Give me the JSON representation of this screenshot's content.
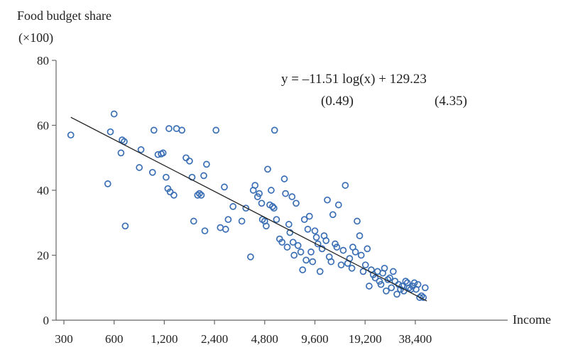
{
  "chart_data": {
    "type": "scatter",
    "title": "",
    "ylabel_line1": "Food budget share",
    "ylabel_line2": "(×100)",
    "xlabel": "Income",
    "x_scale": "log2",
    "xlim": [
      300,
      50000
    ],
    "ylim": [
      0,
      80
    ],
    "y_ticks": [
      "0",
      "20",
      "40",
      "60",
      "80"
    ],
    "x_ticks": [
      "300",
      "600",
      "1,200",
      "2,400",
      "4,800",
      "9,600",
      "19,200",
      "38,400"
    ],
    "grid": false,
    "legend": "none",
    "annotation": {
      "equation": "y = –11.51 log(x)  +  129.23",
      "se_slope": "(0.49)",
      "se_intercept": "(4.35)"
    },
    "fit_line": {
      "slope": -11.51,
      "intercept": 129.23,
      "x_from": 330,
      "x_to": 45000
    },
    "point_color": "#3a6fb5",
    "line_color": "#222222",
    "points": [
      [
        330,
        57
      ],
      [
        550,
        42
      ],
      [
        570,
        58
      ],
      [
        600,
        63.5
      ],
      [
        660,
        51.5
      ],
      [
        670,
        55.5
      ],
      [
        690,
        55
      ],
      [
        700,
        29
      ],
      [
        850,
        47
      ],
      [
        870,
        52.5
      ],
      [
        1020,
        45.5
      ],
      [
        1040,
        58.5
      ],
      [
        1100,
        51
      ],
      [
        1150,
        51.2
      ],
      [
        1180,
        51.5
      ],
      [
        1230,
        44
      ],
      [
        1260,
        40.5
      ],
      [
        1280,
        59
      ],
      [
        1300,
        39.5
      ],
      [
        1370,
        38.5
      ],
      [
        1420,
        59
      ],
      [
        1530,
        58.5
      ],
      [
        1620,
        50
      ],
      [
        1700,
        49
      ],
      [
        1760,
        44
      ],
      [
        1800,
        30.5
      ],
      [
        1900,
        38.5
      ],
      [
        1950,
        39
      ],
      [
        2000,
        38.5
      ],
      [
        2070,
        44.5
      ],
      [
        2100,
        27.5
      ],
      [
        2150,
        48
      ],
      [
        2450,
        58.5
      ],
      [
        2600,
        28.5
      ],
      [
        2750,
        41
      ],
      [
        2800,
        28
      ],
      [
        2900,
        31
      ],
      [
        3100,
        35
      ],
      [
        3500,
        30.5
      ],
      [
        3700,
        34.5
      ],
      [
        3950,
        19.5
      ],
      [
        4100,
        40
      ],
      [
        4200,
        41.5
      ],
      [
        4350,
        38
      ],
      [
        4450,
        39
      ],
      [
        4600,
        36
      ],
      [
        4650,
        31
      ],
      [
        4800,
        30.5
      ],
      [
        4900,
        29
      ],
      [
        5000,
        46.5
      ],
      [
        5150,
        35.5
      ],
      [
        5250,
        40
      ],
      [
        5350,
        35
      ],
      [
        5450,
        34.5
      ],
      [
        5500,
        58.5
      ],
      [
        5650,
        31
      ],
      [
        5900,
        25
      ],
      [
        6100,
        24
      ],
      [
        6300,
        43.5
      ],
      [
        6400,
        39
      ],
      [
        6550,
        22.5
      ],
      [
        6700,
        29.5
      ],
      [
        6800,
        27
      ],
      [
        7000,
        38
      ],
      [
        7100,
        24
      ],
      [
        7200,
        20
      ],
      [
        7400,
        36
      ],
      [
        7600,
        23
      ],
      [
        7900,
        21
      ],
      [
        8100,
        15.5
      ],
      [
        8300,
        31
      ],
      [
        8500,
        18.5
      ],
      [
        8700,
        28
      ],
      [
        8900,
        32
      ],
      [
        9100,
        21
      ],
      [
        9300,
        18
      ],
      [
        9600,
        27.5
      ],
      [
        9800,
        25.5
      ],
      [
        10000,
        23.5
      ],
      [
        10300,
        15
      ],
      [
        10600,
        22
      ],
      [
        10900,
        26
      ],
      [
        11200,
        24.5
      ],
      [
        11400,
        37
      ],
      [
        11700,
        19.5
      ],
      [
        12000,
        18
      ],
      [
        12300,
        32.5
      ],
      [
        12700,
        23.5
      ],
      [
        13000,
        22.5
      ],
      [
        13300,
        35.5
      ],
      [
        13800,
        17
      ],
      [
        14200,
        21.5
      ],
      [
        14600,
        41.5
      ],
      [
        15100,
        17.5
      ],
      [
        15500,
        19
      ],
      [
        16000,
        16
      ],
      [
        16200,
        22.5
      ],
      [
        16800,
        21
      ],
      [
        17200,
        30.5
      ],
      [
        17800,
        26
      ],
      [
        18200,
        20
      ],
      [
        18700,
        15
      ],
      [
        19300,
        17
      ],
      [
        19800,
        22
      ],
      [
        20300,
        10.5
      ],
      [
        20900,
        15.5
      ],
      [
        21500,
        14
      ],
      [
        22100,
        13
      ],
      [
        22800,
        15
      ],
      [
        23400,
        12
      ],
      [
        23900,
        11
      ],
      [
        24500,
        14.5
      ],
      [
        25100,
        16
      ],
      [
        25700,
        9
      ],
      [
        26300,
        12.5
      ],
      [
        27000,
        13
      ],
      [
        27600,
        10
      ],
      [
        28300,
        15
      ],
      [
        29000,
        12
      ],
      [
        29800,
        8
      ],
      [
        30500,
        11
      ],
      [
        31300,
        9.5
      ],
      [
        32000,
        10.5
      ],
      [
        32800,
        9
      ],
      [
        33600,
        12
      ],
      [
        34400,
        11.5
      ],
      [
        35300,
        10
      ],
      [
        36100,
        9.5
      ],
      [
        37000,
        10.5
      ],
      [
        37900,
        11.5
      ],
      [
        38800,
        9.5
      ],
      [
        39800,
        11
      ],
      [
        40800,
        7
      ],
      [
        41800,
        7.5
      ],
      [
        42900,
        7
      ],
      [
        44000,
        10
      ]
    ]
  }
}
